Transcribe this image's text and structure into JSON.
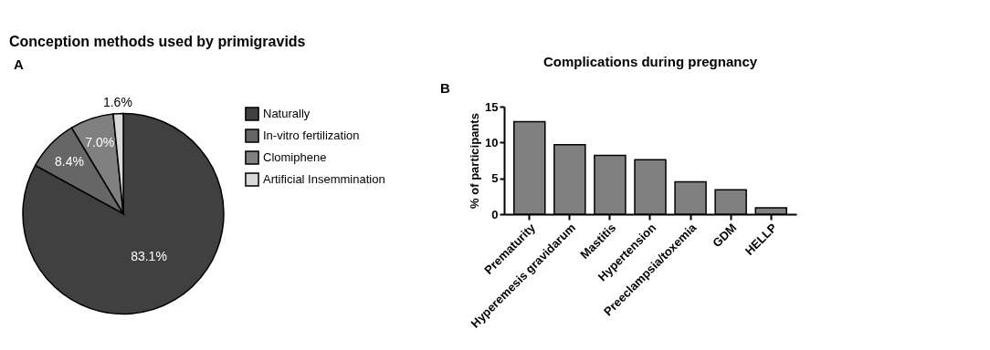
{
  "chart_data": [
    {
      "type": "pie",
      "title": "Conception methods used by primigravids",
      "annotations": [
        "A"
      ],
      "categories": [
        "Naturally",
        "In-vitro fertilization",
        "Clomiphene",
        "Artificial Insemmination"
      ],
      "values": [
        83.1,
        8.4,
        7.0,
        1.6
      ],
      "value_labels": [
        "83.1%",
        "8.4%",
        "7.0%",
        "1.6%"
      ],
      "colors": [
        "#404040",
        "#666666",
        "#808080",
        "#d9d9d9"
      ],
      "legend": "right"
    },
    {
      "type": "bar",
      "title": "Complications during pregnancy",
      "annotations": [
        "B"
      ],
      "ylabel": "% of participants",
      "categories": [
        "Prematurity",
        "Hyperemesis gravidarum",
        "Mastitis",
        "Hypertension",
        "Preeclampsia/toxemia",
        "GDM",
        "HELLP"
      ],
      "values": [
        12.9,
        9.7,
        8.2,
        7.6,
        4.5,
        3.4,
        0.9
      ],
      "color": "#808080",
      "ylim": [
        0,
        15
      ],
      "yticks": [
        0,
        5,
        10,
        15
      ],
      "grid": false
    }
  ]
}
